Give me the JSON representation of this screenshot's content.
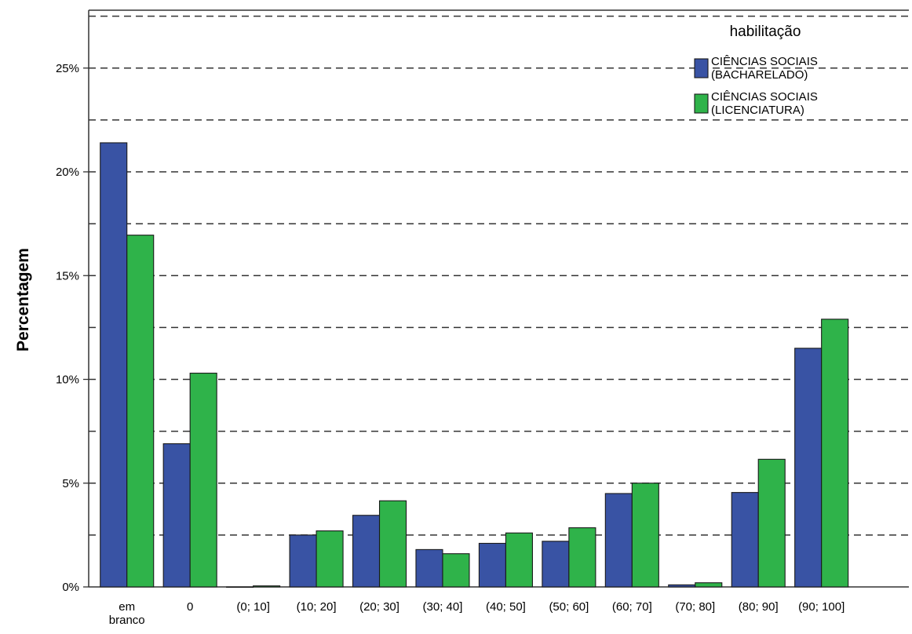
{
  "chart_data": {
    "type": "bar",
    "ylabel": "Percentagem",
    "xlabel": "",
    "ylim": [
      0,
      27.5
    ],
    "yticks": [
      {
        "value": 0,
        "label": "0%"
      },
      {
        "value": 5,
        "label": "5%"
      },
      {
        "value": 10,
        "label": "10%"
      },
      {
        "value": 15,
        "label": "15%"
      },
      {
        "value": 20,
        "label": "20%"
      },
      {
        "value": 25,
        "label": "25%"
      }
    ],
    "grid_values": [
      2.5,
      5,
      7.5,
      10,
      12.5,
      15,
      17.5,
      20,
      22.5,
      25,
      27.5
    ],
    "grid": "horizontal dashed",
    "categories": [
      [
        "em",
        "branco"
      ],
      [
        "0"
      ],
      [
        "(0; 10]"
      ],
      [
        "(10; 20]"
      ],
      [
        "(20; 30]"
      ],
      [
        "(30; 40]"
      ],
      [
        "(40; 50]"
      ],
      [
        "(50; 60]"
      ],
      [
        "(60; 70]"
      ],
      [
        "(70; 80]"
      ],
      [
        "(80; 90]"
      ],
      [
        "(90; 100]"
      ]
    ],
    "legend": {
      "title": "habilitação",
      "placement": "top-right"
    },
    "series": [
      {
        "name": [
          "CIÊNCIAS SOCIAIS",
          "(BACHARELADO)"
        ],
        "color": "#3953a4",
        "values": [
          21.4,
          6.9,
          0.0,
          2.5,
          3.45,
          1.8,
          2.1,
          2.2,
          4.5,
          0.1,
          4.55,
          11.5
        ]
      },
      {
        "name": [
          "CIÊNCIAS SOCIAIS",
          "(LICENCIATURA)"
        ],
        "color": "#2fb34a",
        "values": [
          16.95,
          10.3,
          0.05,
          2.7,
          4.15,
          1.6,
          2.6,
          2.85,
          5.0,
          0.2,
          6.15,
          12.9
        ]
      }
    ]
  }
}
